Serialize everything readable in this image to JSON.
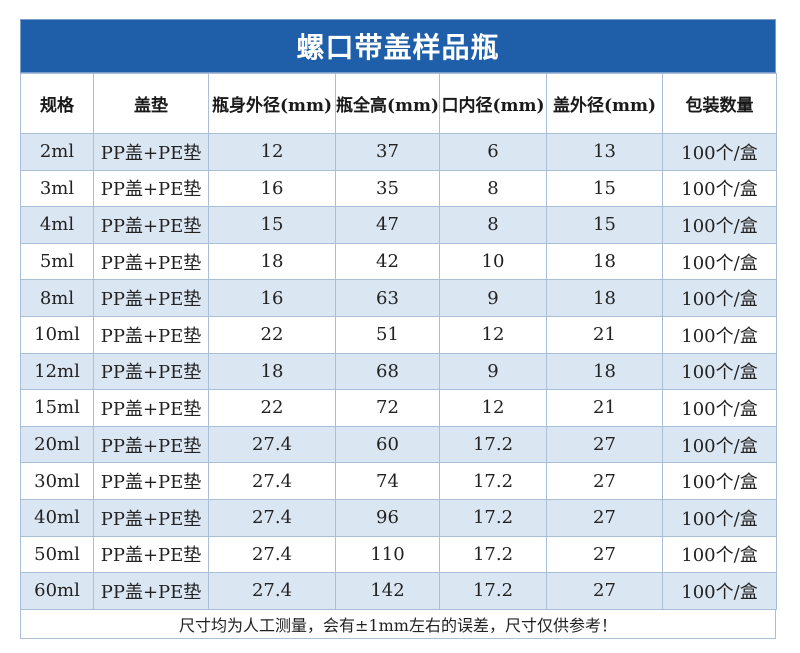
{
  "title": "螺口带盖样品瓶",
  "headers": [
    "规格",
    "盖垫",
    "瓶身外径(mm)",
    "瓶全高(mm)",
    "口内径(mm)",
    "盖外径(mm)",
    "包装数量"
  ],
  "rows": [
    [
      "2ml",
      "PP盖+PE垫",
      "12",
      "37",
      "6",
      "13",
      "100个/盒"
    ],
    [
      "3ml",
      "PP盖+PE垫",
      "16",
      "35",
      "8",
      "15",
      "100个/盒"
    ],
    [
      "4ml",
      "PP盖+PE垫",
      "15",
      "47",
      "8",
      "15",
      "100个/盒"
    ],
    [
      "5ml",
      "PP盖+PE垫",
      "18",
      "42",
      "10",
      "18",
      "100个/盒"
    ],
    [
      "8ml",
      "PP盖+PE垫",
      "16",
      "63",
      "9",
      "18",
      "100个/盒"
    ],
    [
      "10ml",
      "PP盖+PE垫",
      "22",
      "51",
      "12",
      "21",
      "100个/盒"
    ],
    [
      "12ml",
      "PP盖+PE垫",
      "18",
      "68",
      "9",
      "18",
      "100个/盒"
    ],
    [
      "15ml",
      "PP盖+PE垫",
      "22",
      "72",
      "12",
      "21",
      "100个/盒"
    ],
    [
      "20ml",
      "PP盖+PE垫",
      "27.4",
      "60",
      "17.2",
      "27",
      "100个/盒"
    ],
    [
      "30ml",
      "PP盖+PE垫",
      "27.4",
      "74",
      "17.2",
      "27",
      "100个/盒"
    ],
    [
      "40ml",
      "PP盖+PE垫",
      "27.4",
      "96",
      "17.2",
      "27",
      "100个/盒"
    ],
    [
      "50ml",
      "PP盖+PE垫",
      "27.4",
      "110",
      "17.2",
      "27",
      "100个/盒"
    ],
    [
      "60ml",
      "PP盖+PE垫",
      "27.4",
      "142",
      "17.2",
      "27",
      "100个/盒"
    ]
  ],
  "note": "尺寸均为人工测量，会有±1mm左右的误差，尺寸仅供参考！",
  "colors": {
    "title_bg": "#1f5ea8",
    "row_alt_bg": "#dbe6f3",
    "border": "#a9bfd9"
  }
}
